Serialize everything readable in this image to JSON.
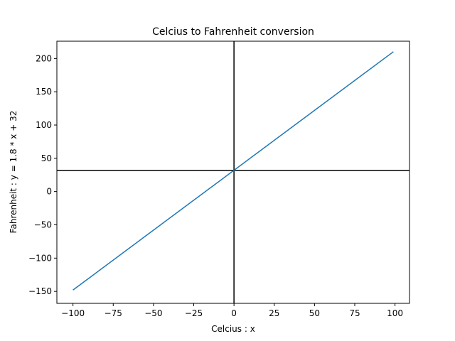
{
  "chart_data": {
    "type": "line",
    "title": "Celcius to Fahrenheit conversion",
    "xlabel": "Celcius : x",
    "ylabel": "Fahrenheit : y = 1.8 * x + 32",
    "xlim": [
      -110,
      109
    ],
    "ylim": [
      -168,
      226
    ],
    "x_ticks": [
      -100,
      -75,
      -50,
      -25,
      0,
      25,
      50,
      75,
      100
    ],
    "x_tick_labels": [
      "−100",
      "−75",
      "−50",
      "−25",
      "0",
      "25",
      "50",
      "75",
      "100"
    ],
    "y_ticks": [
      -150,
      -100,
      -50,
      0,
      50,
      100,
      150,
      200
    ],
    "y_tick_labels": [
      "−150",
      "−100",
      "−50",
      "0",
      "50",
      "100",
      "150",
      "200"
    ],
    "grid": false,
    "series": [
      {
        "color": "#1f77b4",
        "x": [
          -100,
          99
        ],
        "y": [
          -148,
          210.2
        ]
      }
    ],
    "reference_lines": [
      {
        "orientation": "vertical",
        "value": 0,
        "color": "#000000"
      },
      {
        "orientation": "horizontal",
        "value": 32,
        "color": "#000000"
      }
    ]
  }
}
